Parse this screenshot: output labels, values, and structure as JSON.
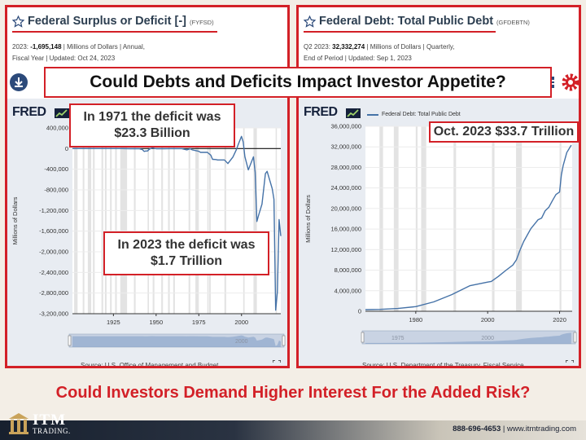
{
  "headline": "Could Debts and Deficits Impact Investor Appetite?",
  "subheadline": "Could Investors Demand Higher Interest For the Added Risk?",
  "footer": {
    "brand_main": "ITM",
    "brand_sub": "TRADING.",
    "phone": "888-696-4653",
    "separator": "|",
    "website": "www.itmtrading.com"
  },
  "left_panel": {
    "title": "Federal Surplus or Deficit [-]",
    "code": "(FYFSD)",
    "meta_line1_prefix": "2023:",
    "meta_value": "-1,695,148",
    "meta_line1_suffix": "| Millions of Dollars | Annual,",
    "meta_line2": "Fiscal Year | Updated: Oct 24, 2023",
    "fred_logo": "FRED",
    "callout_top_line1": "In 1971 the deficit was",
    "callout_top_line2": "$23.3 Billion",
    "callout_bottom_line1": "In 2023 the deficit was",
    "callout_bottom_line2": "$1.7 Trillion",
    "source": "Source: U.S. Office of Management and Budget",
    "slider_label": "2000"
  },
  "right_panel": {
    "title": "Federal Debt: Total Public Debt",
    "code": "(GFDEBTN)",
    "meta_line1_prefix": "Q2 2023:",
    "meta_value": "32,332,274",
    "meta_line1_suffix": "| Millions of Dollars | Quarterly,",
    "meta_line2": "End of Period | Updated: Sep 1, 2023",
    "fred_logo": "FRED",
    "legend": "Federal Debt: Total Public Debt",
    "callout": "Oct. 2023 $33.7 Trillion",
    "source": "Source: U.S. Department of the Treasury. Fiscal Service",
    "slider_label_1": "1975",
    "slider_label_2": "2000"
  },
  "chart_data": [
    {
      "type": "line",
      "title": "Federal Surplus or Deficit [-]",
      "ylabel": "Millions of Dollars",
      "xlabel": "",
      "xlim": [
        1901,
        2023
      ],
      "ylim": [
        -3200000,
        400000
      ],
      "y_ticks": [
        400000,
        0,
        -400000,
        -800000,
        -1200000,
        -1600000,
        -2000000,
        -2400000,
        -2800000,
        -3200000
      ],
      "y_tick_labels": [
        "400,000",
        "0",
        "-400,000",
        "-800,000",
        "-1,200,000",
        "-1,600,000",
        "-2,000,000",
        "-2,400,000",
        "-2,800,000",
        "-3,200,000"
      ],
      "x_ticks": [
        1925,
        1950,
        1975,
        2000
      ],
      "recessions": [
        [
          1902,
          1904
        ],
        [
          1907,
          1908
        ],
        [
          1910,
          1912
        ],
        [
          1913,
          1914
        ],
        [
          1918,
          1919
        ],
        [
          1920,
          1921
        ],
        [
          1923,
          1924
        ],
        [
          1926,
          1927
        ],
        [
          1929,
          1933
        ],
        [
          1937,
          1938
        ],
        [
          1945,
          1945.8
        ],
        [
          1948,
          1949
        ],
        [
          1953,
          1954
        ],
        [
          1957,
          1958
        ],
        [
          1960,
          1961
        ],
        [
          1969,
          1970
        ],
        [
          1973,
          1975
        ],
        [
          1980,
          1980.6
        ],
        [
          1981,
          1982
        ],
        [
          1990,
          1991
        ],
        [
          2001,
          2001.8
        ],
        [
          2007,
          2009
        ],
        [
          2020,
          2020.4
        ]
      ],
      "series": [
        {
          "x": [
            1901,
            1910,
            1920,
            1930,
            1935,
            1940,
            1942,
            1943,
            1944,
            1945,
            1946,
            1947,
            1948,
            1950,
            1955,
            1960,
            1965,
            1968,
            1970,
            1971,
            1975,
            1976,
            1980,
            1982,
            1983,
            1985,
            1986,
            1990,
            1992,
            1995,
            1997,
            1998,
            2000,
            2001,
            2002,
            2004,
            2007,
            2008,
            2009,
            2010,
            2012,
            2014,
            2015,
            2017,
            2018,
            2019,
            2020,
            2021,
            2022,
            2023
          ],
          "y": [
            60,
            -20,
            300,
            700,
            -2800,
            -2900,
            -20500,
            -54600,
            -47600,
            -47600,
            -15900,
            4000,
            11800,
            -3100,
            -3000,
            300,
            -1400,
            -25200,
            -2800,
            -23300,
            -53200,
            -73700,
            -73800,
            -128000,
            -208000,
            -212300,
            -221200,
            -221000,
            -290300,
            -164000,
            -21900,
            69300,
            236200,
            128200,
            -157800,
            -412700,
            -160700,
            -458600,
            -1412700,
            -1294400,
            -1077000,
            -485000,
            -442000,
            -665400,
            -779100,
            -983600,
            -3132400,
            -2775300,
            -1375900,
            -1695148
          ]
        }
      ]
    },
    {
      "type": "line",
      "title": "Federal Debt: Total Public Debt",
      "ylabel": "Millions of Dollars",
      "xlabel": "",
      "xlim": [
        1966,
        2023.5
      ],
      "ylim": [
        0,
        36000000
      ],
      "y_ticks": [
        0,
        4000000,
        8000000,
        12000000,
        16000000,
        20000000,
        24000000,
        28000000,
        32000000,
        36000000
      ],
      "y_tick_labels": [
        "0",
        "4,000,000",
        "8,000,000",
        "12,000,000",
        "16,000,000",
        "20,000,000",
        "24,000,000",
        "28,000,000",
        "32,000,000",
        "36,000,000"
      ],
      "x_ticks": [
        1980,
        2000,
        2020
      ],
      "recessions": [
        [
          1969.9,
          1970.9
        ],
        [
          1973.9,
          1975.2
        ],
        [
          1980,
          1980.5
        ],
        [
          1981.5,
          1982.9
        ],
        [
          1990.5,
          1991.2
        ],
        [
          2001.2,
          2001.9
        ],
        [
          2007.9,
          2009.5
        ],
        [
          2020,
          2020.5
        ]
      ],
      "series": [
        {
          "name": "Federal Debt: Total Public Debt",
          "x": [
            1966,
            1970,
            1975,
            1980,
            1985,
            1990,
            1995,
            2000,
            2001,
            2003,
            2005,
            2007,
            2008,
            2009,
            2010,
            2012,
            2014,
            2015,
            2016,
            2017,
            2018,
            2019,
            2020,
            2020.5,
            2021,
            2022,
            2023.25
          ],
          "y": [
            320000,
            370000,
            540000,
            910000,
            1820000,
            3230000,
            4970000,
            5670000,
            5800000,
            6780000,
            7930000,
            9000000,
            10000000,
            11900000,
            13560000,
            16070000,
            17800000,
            18150000,
            19570000,
            20240000,
            21520000,
            22720000,
            23200000,
            26500000,
            28400000,
            30900000,
            32332274
          ]
        }
      ]
    }
  ]
}
